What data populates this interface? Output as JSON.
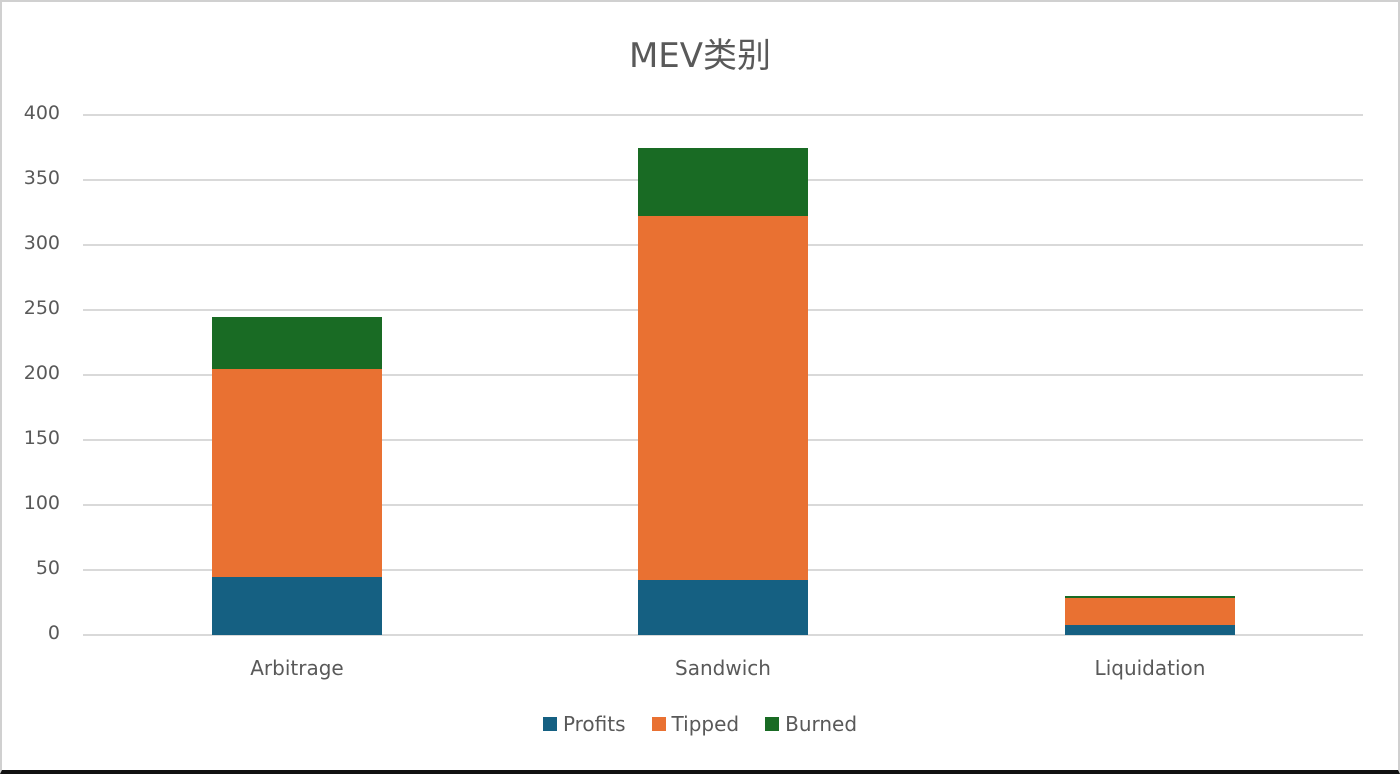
{
  "chart_data": {
    "type": "bar",
    "stacked": true,
    "title": "MEV类别",
    "xlabel": "",
    "ylabel": "",
    "ylim": [
      0,
      400
    ],
    "yticks": [
      0,
      50,
      100,
      150,
      200,
      250,
      300,
      350,
      400
    ],
    "grid": true,
    "legend_position": "bottom",
    "categories": [
      "Arbitrage",
      "Sandwich",
      "Liquidation"
    ],
    "series": [
      {
        "name": "Profits",
        "color": "#156082",
        "values": [
          45,
          42,
          7.5
        ]
      },
      {
        "name": "Tipped",
        "color": "#E97132",
        "values": [
          160,
          280,
          21
        ]
      },
      {
        "name": "Burned",
        "color": "#196B24",
        "values": [
          40,
          53,
          1.5
        ]
      }
    ]
  }
}
